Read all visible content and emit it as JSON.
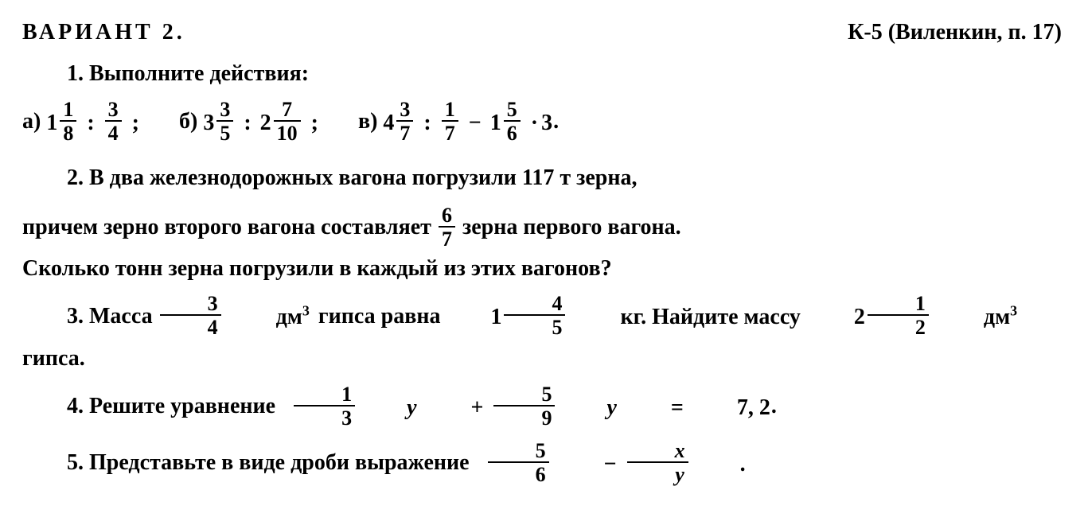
{
  "header": {
    "variant": "ВАРИАНТ 2.",
    "source": "К-5 (Виленкин, п. 17)"
  },
  "p1": {
    "title": "1. Выполните действия:",
    "a_label": "а)",
    "a_whole1": "1",
    "a_num1": "1",
    "a_den1": "8",
    "a_num2": "3",
    "a_den2": "4",
    "b_label": "б)",
    "b_whole1": "3",
    "b_num1": "3",
    "b_den1": "5",
    "b_whole2": "2",
    "b_num2": "7",
    "b_den2": "10",
    "c_label": "в)",
    "c_whole1": "4",
    "c_num1": "3",
    "c_den1": "7",
    "c_num2": "1",
    "c_den2": "7",
    "c_whole3": "1",
    "c_num3": "5",
    "c_den3": "6",
    "c_mult": "3",
    "divide": ":",
    "minus": "−",
    "dot": "·",
    "semi": ";",
    "period": "."
  },
  "p2": {
    "label": "2.",
    "line1a": "В два железнодорожных вагона погрузили 117 т зерна,",
    "line2a": "причем зерно второго вагона составляет",
    "frac_num": "6",
    "frac_den": "7",
    "line2b": "зерна первого вагона.",
    "line3": "Сколько тонн зерна погрузили в каждый из этих вагонов?"
  },
  "p3": {
    "label": "3.",
    "t1": "Масса",
    "f1_num": "3",
    "f1_den": "4",
    "unit1": "дм",
    "cube": "3",
    "t2": "гипса равна",
    "f2_whole": "1",
    "f2_num": "4",
    "f2_den": "5",
    "t3": "кг. Найдите массу",
    "f3_whole": "2",
    "f3_num": "1",
    "f3_den": "2",
    "unit2": "дм",
    "line2": "гипса."
  },
  "p4": {
    "label": "4.",
    "t1": "Решите уравнение",
    "f1_num": "1",
    "f1_den": "3",
    "var": "y",
    "plus": "+",
    "f2_num": "5",
    "f2_den": "9",
    "eq": "=",
    "val": "7, 2",
    "period": "."
  },
  "p5": {
    "label": "5.",
    "t1": "Представьте в виде дроби выражение",
    "f1_num": "5",
    "f1_den": "6",
    "minus": "−",
    "f2_num": "x",
    "f2_den": "y",
    "period": "."
  },
  "style": {
    "font_family": "Georgia, 'Times New Roman', serif",
    "text_color": "#000000",
    "bg_color": "#ffffff",
    "font_size_pt": 28,
    "font_weight": "bold"
  }
}
